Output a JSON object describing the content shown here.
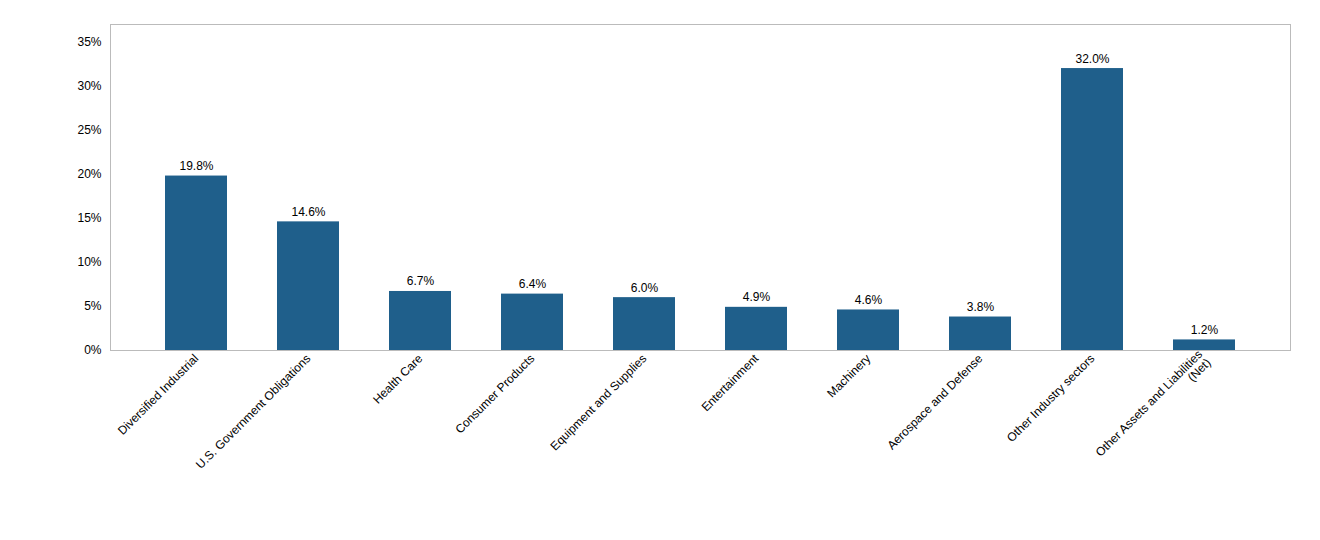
{
  "chart_data": {
    "type": "bar",
    "categories": [
      "Diversified Industrial",
      "U.S. Government Obligations",
      "Health Care",
      "Consumer Products",
      "Equipment and Supplies",
      "Entertainment",
      "Machinery",
      "Aerospace and Defense",
      "Other Industry sectors",
      "Other Assets and Liabilities\n(Net)"
    ],
    "values": [
      19.8,
      14.6,
      6.7,
      6.4,
      6.0,
      4.9,
      4.6,
      3.8,
      32.0,
      1.2
    ],
    "value_labels": [
      "19.8%",
      "14.6%",
      "6.7%",
      "6.4%",
      "6.0%",
      "4.9%",
      "4.6%",
      "3.8%",
      "32.0%",
      "1.2%"
    ],
    "data_labels": true,
    "color": "#1f5f8b",
    "ylim": [
      0,
      37
    ],
    "yticks": [
      {
        "value": 0,
        "label": "0%"
      },
      {
        "value": 5,
        "label": "5%"
      },
      {
        "value": 10,
        "label": "10%"
      },
      {
        "value": 15,
        "label": "15%"
      },
      {
        "value": 20,
        "label": "20%"
      },
      {
        "value": 25,
        "label": "25%"
      },
      {
        "value": 30,
        "label": "30%"
      },
      {
        "value": 35,
        "label": "35%"
      }
    ],
    "grid": false
  }
}
